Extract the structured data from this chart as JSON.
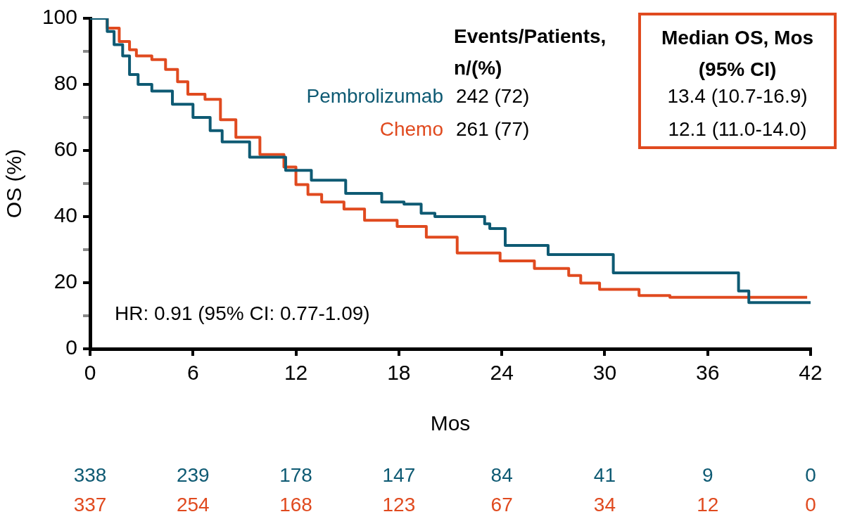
{
  "chart_data": {
    "type": "step",
    "xlabel": "Mos",
    "ylabel": "OS (%)",
    "xlim": [
      0,
      42
    ],
    "xticks": [
      0,
      6,
      12,
      18,
      24,
      30,
      36,
      42
    ],
    "ylim": [
      0,
      100
    ],
    "yticks": [
      0,
      {
        "value": 10,
        "label": null
      },
      20,
      {
        "value": 30,
        "label": null
      },
      40,
      {
        "value": 50,
        "label": null
      },
      60,
      {
        "value": 70,
        "label": null
      },
      80,
      {
        "value": 90,
        "label": null
      },
      100
    ],
    "grid": false,
    "legend": false,
    "line_style": "solid",
    "marker": "none",
    "series": [
      {
        "name": "Pembrolizumab",
        "color": "#0e5a73",
        "x": [
          0,
          1,
          1.4,
          1.9,
          2.3,
          2.8,
          3.6,
          4.8,
          6,
          7,
          7.7,
          9.3,
          11.4,
          12.9,
          14.9,
          17,
          18.3,
          19.3,
          20.1,
          23,
          23.3,
          24.2,
          26.7,
          30.5,
          37.5,
          37.8,
          38.4,
          42
        ],
        "values": [
          100,
          96,
          92,
          88.6,
          83,
          80,
          78,
          74,
          70,
          66,
          62.6,
          58,
          54,
          51,
          47,
          44.4,
          43.8,
          41,
          40,
          37.8,
          36.4,
          31.3,
          28.5,
          23,
          23,
          17.5,
          14,
          14
        ]
      },
      {
        "name": "Chemo",
        "color": "#e04a1f",
        "x": [
          0,
          1,
          1.7,
          2.3,
          2.7,
          3.6,
          4.4,
          5.1,
          5.7,
          6.7,
          7.6,
          8.5,
          9.9,
          11.3,
          12,
          12.7,
          13.5,
          14.8,
          16,
          17.9,
          19.6,
          21.4,
          23.9,
          25.9,
          27.9,
          28.6,
          29.7,
          32,
          33.8,
          41.8
        ],
        "values": [
          100,
          97,
          93,
          90.5,
          88.6,
          87.5,
          84.5,
          80.8,
          77,
          75.5,
          69.3,
          64,
          58.8,
          55,
          49.7,
          46.7,
          44.4,
          42.3,
          38.9,
          37,
          33.8,
          29,
          26.6,
          24.3,
          22.2,
          19.9,
          18,
          16.1,
          15.6,
          15.6
        ]
      }
    ],
    "annotations": [
      "HR: 0.91 (95% CI: 0.77-1.09)",
      "Events/Patients, n/(%)",
      "Median OS, Mos (95% CI)",
      "242 (72)",
      "261 (77)",
      "13.4 (10.7-16.9)",
      "12.1 (11.0-14.0)",
      "338",
      "239",
      "178",
      "147",
      "84",
      "41",
      "9",
      "0",
      "337",
      "254",
      "168",
      "123",
      "67",
      "34",
      "12",
      "0"
    ]
  }
}
